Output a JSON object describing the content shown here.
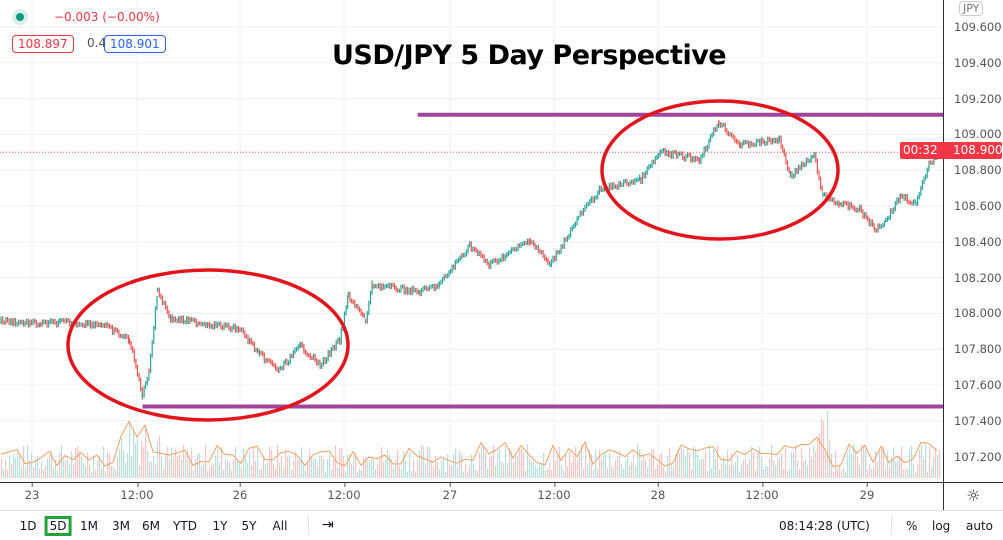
{
  "legend": {
    "change": "−0.003 (−0.00%)",
    "bid": "108.897",
    "spread": "0.4",
    "ask": "108.901",
    "status_color": "#089981"
  },
  "title": "USD/JPY 5 Day Perspective",
  "price_axis": {
    "currency": "JPY",
    "ticks": [
      "109.600",
      "109.400",
      "109.200",
      "109.000",
      "108.800",
      "108.600",
      "108.400",
      "108.200",
      "108.000",
      "107.800",
      "107.600",
      "107.400",
      "107.200"
    ],
    "last_price": "108.900",
    "countdown": "00:32",
    "last_color": "#f23645"
  },
  "time_axis": {
    "ticks": [
      "23",
      "12:00",
      "26",
      "12:00",
      "27",
      "12:00",
      "28",
      "12:00",
      "29"
    ]
  },
  "toolbar": {
    "ranges": [
      "1D",
      "5D",
      "1M",
      "3M",
      "6M",
      "YTD",
      "1Y",
      "5Y",
      "All"
    ],
    "active_range": "5D",
    "clock": "08:14:28 (UTC)",
    "percent": "%",
    "log": "log",
    "auto": "auto"
  },
  "chart_data": {
    "type": "line",
    "title": "USD/JPY 5 Day Perspective",
    "ylim": [
      107.1,
      109.7
    ],
    "x": [
      "22 20:15",
      "23 01:00",
      "23 03:15",
      "23 08:00",
      "23 11:15",
      "23 12:45",
      "23 13:30",
      "23 14:30",
      "23 16:00",
      "23 20:30",
      "26 00:00",
      "26 02:15",
      "26 04:30",
      "26 07:00",
      "26 09:15",
      "26 11:30",
      "26 12:30",
      "26 14:30",
      "26 15:15",
      "26 20:45",
      "26 23:00",
      "27 02:30",
      "27 04:45",
      "27 09:30",
      "27 11:45",
      "27 15:15",
      "27 17:30",
      "27 22:15",
      "28 00:30",
      "28 05:00",
      "28 07:15",
      "28 09:45",
      "28 14:15",
      "28 15:30",
      "28 18:15",
      "28 19:15",
      "28 21:15",
      "28 23:30",
      "29 01:15",
      "29 02:30",
      "29 04:15",
      "29 06:00",
      "29 07:30",
      "29 08:30"
    ],
    "values": [
      107.96,
      107.94,
      107.95,
      107.94,
      107.85,
      107.54,
      107.68,
      108.13,
      107.97,
      107.94,
      107.91,
      107.77,
      107.68,
      107.82,
      107.71,
      107.85,
      108.1,
      107.96,
      108.16,
      108.12,
      108.16,
      108.38,
      108.27,
      108.41,
      108.27,
      108.55,
      108.69,
      108.75,
      108.9,
      108.86,
      109.07,
      108.94,
      108.97,
      108.77,
      108.88,
      108.66,
      108.61,
      108.58,
      108.47,
      108.52,
      108.66,
      108.61,
      108.83,
      108.9
    ],
    "up_color": "#26a69a",
    "down_color": "#ef5350",
    "resistance": {
      "price": 109.11,
      "from": "26 20:30",
      "color": "#a0449c"
    },
    "support": {
      "price": 107.48,
      "from": "23 12:45",
      "color": "#a0449c"
    },
    "grid": true
  }
}
